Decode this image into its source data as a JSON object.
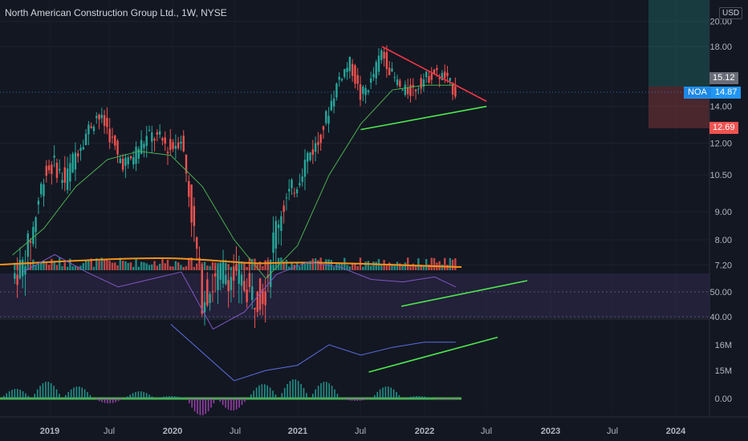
{
  "title": "North American Construction Group Ltd., 1W, NYSE",
  "currency": "USD",
  "symbol": "NOA",
  "last_price": "14.87",
  "target_price": "15.12",
  "stop_price": "12.69",
  "colors": {
    "background": "#131722",
    "up": "#26a69a",
    "down": "#ef5350",
    "sma": "#4caf50",
    "volume_ma": "#f7931a",
    "rsi": "#7e57c2",
    "obv": "#5b6ee1",
    "trend_resistance": "#f23645",
    "trend_support": "#4ee84e",
    "symbol_tag": "#2196f3",
    "target_tag": "#6a6d78",
    "stop_tag": "#ef5350"
  },
  "price_axis": {
    "scale": "log",
    "ticks": [
      "20.00",
      "18.00",
      "14.00",
      "12.00",
      "10.50",
      "9.00",
      "8.00",
      "7.20"
    ]
  },
  "rsi_axis": {
    "ticks": [
      "50.00",
      "40.00"
    ]
  },
  "obv_axis": {
    "ticks": [
      "16M",
      "15M"
    ]
  },
  "macd_axis": {
    "ticks": [
      "0.00"
    ]
  },
  "time_axis": {
    "labels": [
      "2019",
      "Jul",
      "2020",
      "Jul",
      "2021",
      "Jul",
      "2022",
      "Jul",
      "2023",
      "Jul",
      "2024"
    ]
  },
  "chart_data": [
    {
      "type": "candlestick",
      "series_points": [
        {
          "x": "2018-10",
          "y": 6.8
        },
        {
          "x": "2018-11",
          "y": 7.2
        },
        {
          "x": "2018-12",
          "y": 8.4
        },
        {
          "x": "2019-01",
          "y": 10.5
        },
        {
          "x": "2019-02",
          "y": 11.0
        },
        {
          "x": "2019-03",
          "y": 10.2
        },
        {
          "x": "2019-04",
          "y": 11.5
        },
        {
          "x": "2019-05",
          "y": 12.5
        },
        {
          "x": "2019-06",
          "y": 13.5
        },
        {
          "x": "2019-07",
          "y": 12.8
        },
        {
          "x": "2019-08",
          "y": 11.3
        },
        {
          "x": "2019-09",
          "y": 11.0
        },
        {
          "x": "2019-10",
          "y": 11.8
        },
        {
          "x": "2019-11",
          "y": 12.4
        },
        {
          "x": "2019-12",
          "y": 12.2
        },
        {
          "x": "2020-01",
          "y": 11.7
        },
        {
          "x": "2020-02",
          "y": 12.3
        },
        {
          "x": "2020-03",
          "y": 8.9
        },
        {
          "x": "2020-04",
          "y": 6.3
        },
        {
          "x": "2020-05",
          "y": 6.6
        },
        {
          "x": "2020-06",
          "y": 7.0
        },
        {
          "x": "2020-07",
          "y": 6.8
        },
        {
          "x": "2020-08",
          "y": 6.6
        },
        {
          "x": "2020-09",
          "y": 6.3
        },
        {
          "x": "2020-10",
          "y": 6.5
        },
        {
          "x": "2020-11",
          "y": 8.5
        },
        {
          "x": "2020-12",
          "y": 9.5
        },
        {
          "x": "2021-01",
          "y": 10.2
        },
        {
          "x": "2021-02",
          "y": 11.4
        },
        {
          "x": "2021-03",
          "y": 12.0
        },
        {
          "x": "2021-04",
          "y": 13.8
        },
        {
          "x": "2021-05",
          "y": 15.8
        },
        {
          "x": "2021-06",
          "y": 16.8
        },
        {
          "x": "2021-07",
          "y": 14.6
        },
        {
          "x": "2021-08",
          "y": 15.5
        },
        {
          "x": "2021-09",
          "y": 17.6
        },
        {
          "x": "2021-10",
          "y": 16.0
        },
        {
          "x": "2021-11",
          "y": 14.9
        },
        {
          "x": "2021-12",
          "y": 15.0
        },
        {
          "x": "2022-01",
          "y": 15.7
        },
        {
          "x": "2022-02",
          "y": 16.1
        },
        {
          "x": "2022-03",
          "y": 15.8
        },
        {
          "x": "2022-04",
          "y": 14.87
        }
      ],
      "trendlines": [
        {
          "name": "resistance",
          "from": {
            "x": "2021-09",
            "y": 18.0
          },
          "to": {
            "x": "2022-06",
            "y": 14.3
          }
        },
        {
          "name": "support",
          "from": {
            "x": "2021-07",
            "y": 12.7
          },
          "to": {
            "x": "2022-06",
            "y": 14.0
          }
        }
      ]
    },
    {
      "type": "line",
      "title": "",
      "x": [
        "2018-10",
        "2019-01",
        "2019-04",
        "2019-07",
        "2019-10",
        "2020-01",
        "2020-04",
        "2020-07",
        "2020-10",
        "2021-01",
        "2021-04",
        "2021-07",
        "2021-10",
        "2022-01",
        "2022-04"
      ],
      "series": [
        {
          "values": [
            7.5,
            8.4,
            10.0,
            11.2,
            11.6,
            11.4,
            10.0,
            8.0,
            6.8,
            7.8,
            10.5,
            13.0,
            15.0,
            15.3,
            15.3
          ]
        }
      ]
    },
    {
      "type": "line",
      "ylim": [
        30,
        70
      ],
      "x": [
        "2018-11",
        "2019-02",
        "2019-05",
        "2019-08",
        "2019-11",
        "2020-02",
        "2020-05",
        "2020-08",
        "2020-11",
        "2021-02",
        "2021-05",
        "2021-08",
        "2021-11",
        "2022-02",
        "2022-04"
      ],
      "series": [
        {
          "values": [
            58,
            65,
            58,
            52,
            55,
            58,
            35,
            42,
            57,
            62,
            60,
            55,
            54,
            56,
            52
          ]
        }
      ]
    },
    {
      "type": "line",
      "x": [
        "2020-01",
        "2020-07",
        "2020-10",
        "2021-01",
        "2021-04",
        "2021-07",
        "2021-10",
        "2022-01",
        "2022-04"
      ],
      "series": [
        {
          "values": [
            16.8,
            14.6,
            15.0,
            15.2,
            16.0,
            15.6,
            15.9,
            16.1,
            16.1
          ]
        }
      ],
      "trendlines": [
        {
          "name": "obv-support",
          "from": {
            "x": "2021-07",
            "y": 15.0
          },
          "to": {
            "x": "2022-09",
            "y": 16.2
          }
        }
      ]
    },
    {
      "type": "bar",
      "categories": [
        "2018-Q4",
        "2019-Q1",
        "2019-Q2",
        "2019-Q3",
        "2019-Q4",
        "2020-Q1",
        "2020-Q2",
        "2020-Q3",
        "2020-Q4",
        "2021-Q1",
        "2021-Q2",
        "2021-Q3",
        "2021-Q4",
        "2022-Q1",
        "2022-Q2"
      ],
      "values": [
        0.2,
        0.35,
        0.25,
        -0.1,
        0.15,
        0.05,
        -0.35,
        -0.25,
        0.3,
        0.4,
        0.35,
        -0.05,
        0.25,
        0.05,
        -0.02
      ]
    }
  ]
}
